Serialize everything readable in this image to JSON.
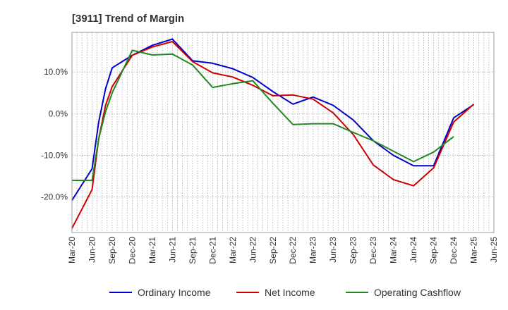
{
  "chart_data": {
    "type": "line",
    "title": "[3911]  Trend of Margin",
    "xlabel": "",
    "ylabel": "",
    "ylim": [
      -28.5,
      19.5
    ],
    "y_ticks": [
      10,
      0,
      -10,
      -20
    ],
    "y_tick_labels": [
      "10.0%",
      "0.0%",
      "-10.0%",
      "-20.0%"
    ],
    "x_tick_labels": [
      "Mar-20",
      "Jun-20",
      "Sep-20",
      "Dec-20",
      "Mar-21",
      "Jun-21",
      "Sep-21",
      "Dec-21",
      "Mar-22",
      "Jun-22",
      "Sep-22",
      "Dec-22",
      "Mar-23",
      "Jun-23",
      "Sep-23",
      "Dec-23",
      "Mar-24",
      "Jun-24",
      "Sep-24",
      "Dec-24",
      "Mar-25",
      "Jun-25"
    ],
    "grid": true,
    "legend_position": "bottom",
    "series": [
      {
        "name": "Ordinary Income",
        "color": "#0000cc",
        "points": [
          [
            0,
            -20.8
          ],
          [
            1,
            -13.2
          ],
          [
            1.33,
            -2.0
          ],
          [
            1.67,
            6.0
          ],
          [
            2,
            11.0
          ],
          [
            3,
            14.0
          ],
          [
            4,
            16.4
          ],
          [
            5,
            17.9
          ],
          [
            6,
            12.7
          ],
          [
            7,
            12.1
          ],
          [
            8,
            10.8
          ],
          [
            9,
            8.7
          ],
          [
            10,
            5.3
          ],
          [
            11,
            2.3
          ],
          [
            12,
            4.0
          ],
          [
            13,
            2.0
          ],
          [
            14,
            -1.5
          ],
          [
            15,
            -6.5
          ],
          [
            16,
            -10.0
          ],
          [
            17,
            -12.5
          ],
          [
            18,
            -12.5
          ],
          [
            19,
            -1.0
          ],
          [
            20,
            2.2
          ]
        ]
      },
      {
        "name": "Net Income",
        "color": "#cc0000",
        "points": [
          [
            0,
            -27.5
          ],
          [
            1,
            -18.2
          ],
          [
            1.33,
            -6.0
          ],
          [
            1.67,
            2.0
          ],
          [
            2,
            6.5
          ],
          [
            3,
            14.0
          ],
          [
            4,
            16.0
          ],
          [
            5,
            17.3
          ],
          [
            6,
            12.5
          ],
          [
            7,
            9.8
          ],
          [
            8,
            8.8
          ],
          [
            9,
            6.8
          ],
          [
            10,
            4.3
          ],
          [
            11,
            4.5
          ],
          [
            12,
            3.5
          ],
          [
            13,
            0.2
          ],
          [
            14,
            -5.0
          ],
          [
            15,
            -12.3
          ],
          [
            16,
            -15.8
          ],
          [
            17,
            -17.3
          ],
          [
            18,
            -13.0
          ],
          [
            19,
            -2.0
          ],
          [
            20,
            2.3
          ]
        ]
      },
      {
        "name": "Operating Cashflow",
        "color": "#228822",
        "points": [
          [
            0,
            -16.0
          ],
          [
            1,
            -16.0
          ],
          [
            1.33,
            -6.0
          ],
          [
            1.67,
            0.5
          ],
          [
            2,
            5.0
          ],
          [
            3,
            15.2
          ],
          [
            4,
            14.1
          ],
          [
            5,
            14.3
          ],
          [
            6,
            11.7
          ],
          [
            7,
            6.3
          ],
          [
            8,
            7.2
          ],
          [
            9,
            7.9
          ],
          [
            10,
            2.5
          ],
          [
            11,
            -2.6
          ],
          [
            12,
            -2.4
          ],
          [
            13,
            -2.4
          ],
          [
            14,
            -4.5
          ],
          [
            15,
            -6.5
          ],
          [
            16,
            -9.0
          ],
          [
            17,
            -11.5
          ],
          [
            18,
            -9.2
          ],
          [
            19,
            -5.5
          ]
        ]
      }
    ]
  }
}
